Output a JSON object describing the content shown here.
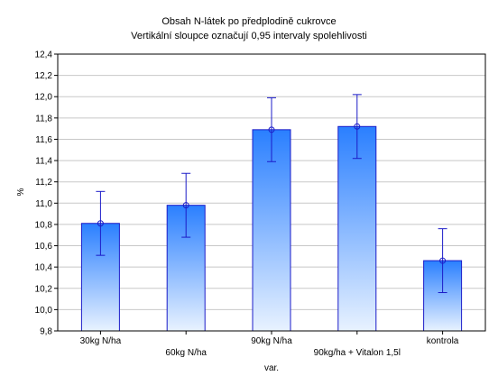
{
  "chart_data": {
    "type": "bar",
    "title": "Obsah N-látek po předplodině cukrovce",
    "subtitle": "Vertikální sloupce označují 0,95 intervaly spolehlivosti",
    "xlabel": "var.",
    "ylabel": "%",
    "categories": [
      "30kg N/ha",
      "60kg N/ha",
      "90kg N/ha",
      "90kg/ha + Vitalon 1,5l",
      "kontrola"
    ],
    "values": [
      10.81,
      10.98,
      11.69,
      11.72,
      10.46
    ],
    "ci_low": [
      10.51,
      10.68,
      11.39,
      11.42,
      10.16
    ],
    "ci_high": [
      11.11,
      11.28,
      11.99,
      12.02,
      10.76
    ],
    "ylim": [
      9.8,
      12.4
    ],
    "yticks": [
      9.8,
      10.0,
      10.2,
      10.4,
      10.6,
      10.8,
      11.0,
      11.2,
      11.4,
      11.6,
      11.8,
      12.0,
      12.2,
      12.4
    ],
    "ytick_labels": [
      "9,8",
      "10,0",
      "10,2",
      "10,4",
      "10,6",
      "10,8",
      "11,0",
      "11,2",
      "11,4",
      "11,6",
      "11,8",
      "12,0",
      "12,2",
      "12,4"
    ],
    "grid": true,
    "colors": {
      "bar_top": "#2a7fff",
      "bar_bottom": "#e8f2ff",
      "bar_stroke": "#1c1cc8",
      "error_bar": "#1c1cc8",
      "grid": "#c8c8c8"
    }
  }
}
